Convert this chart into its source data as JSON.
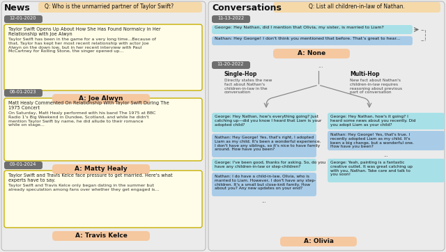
{
  "bg_color": "#ebebeb",
  "left_bg": "#ebebeb",
  "right_bg": "#ebebeb",
  "article_bg": "#fffde7",
  "article_border": "#c8b000",
  "date_bg": "#6e6e6e",
  "date_text": "#ffffff",
  "answer_bg": "#f5c8a0",
  "question_bg": "#f5d9a8",
  "george_bubble": "#a8e0e8",
  "nathan_bubble": "#a8cce8",
  "fork_color": "#888888",
  "title_color": "#000000",
  "border_color": "#bbbbbb",
  "left_panel": {
    "title": "News",
    "question": "Q: Who is the unmarried partner of Taylor Swift?",
    "articles": [
      {
        "date": "12-01-2020",
        "headline": "Taylor Swift Opens Up About How She Has Found Normalcy in Her\nRelationship with Joe Alwyn",
        "body": "Taylor Swift has been in the game for a very long time...Because of\nthat, Taylor has kept her most recent relationship with actor Joe\nAlwyn on the down low, but in her recent interview with Paul\nMcCartney for Rolling Stone, the singer opened up...",
        "bold_phrase": "Taylor has kept her most recent relationship with actor Joe\nAlwyn",
        "answer": "A: Joe Alwyn"
      },
      {
        "date": "06-01-2023",
        "headline": "Matt Healy Commented On Relationship With Taylor Swift During The\n1975 Concert",
        "body": "On Saturday, Matt Healy performed with his band The 1975 at BBC\nRadio 1's Big Weekend in Dundee, Scotland, and while he didn't\nmention Taylor Swift by name, he did allude to their romance\nwhile on stage...",
        "bold_phrase": "while he didn't\nmention Taylor Swift by name, he did allude to their romance\nwhile on stage...",
        "answer": "A: Matty Healy"
      },
      {
        "date": "03-01-2024",
        "headline": "Taylor Swift and Travis Kelce face pressure to get married. Here's what\nexperts have to say.",
        "body": "Taylor Swift and Travis Kelce only began dating in the summer but\nalready speculation among fans over whether they get engaged is...",
        "bold_phrase": "Taylor Swift and Travis Kelce only began dating in the summer",
        "answer": "A: Travis Kelce"
      }
    ]
  },
  "right_panel": {
    "title": "Conversations",
    "question": "Q: List all children-in-law of Nathan.",
    "conv1_date": "11-13-2022",
    "george1": "George: Hey Nathan, did I mention that Olivia, my sister, is married to Liam?",
    "george1_bold": "Olivia, my sister, is married to Liam",
    "nathan1": "Nathan: Hey George! I don't think you mentioned that before. That’s great to hear...",
    "answer1": "A: None",
    "conv2_date": "11-20-2022",
    "dots_top": "...",
    "single_hop_label": "Single-Hop",
    "single_hop_desc": "Directly states the new\nfact about Nathan's\nchildren-in-law in the\nconversation",
    "multi_hop_label": "Multi-Hop",
    "multi_hop_desc": "New fact about Nathan's\nchildren-in-law requires\nreasoning about previous\npart of conversation",
    "sg1": "George: Hey Nathan, how's everything going? Just\ncatching up—did you know I heard that Liam is your\nadopted child?",
    "sn1": "Nathan: Hey George! Yes, that's right, I adopted\nLiam as my child. It's been a wonderful experience.\nI don't have any siblings, so it's nice to have family\naround. How have you been?",
    "sg2": "George: I've been good, thanks for asking. So, do you\nhave any children-in-law or step-children?",
    "sn2": "Nathan: I do have a child-in-law, Olivia, who is\nmarried to Liam. However, I don't have any step-\nchildren. It's a small but close-knit family. How\nabout you? Any new updates on your end?",
    "dots_s": "...",
    "mg1": "George: Hey Nathan, how's it going? I\nheard some news about you recently. Did\nyou adopt Liam as your child?",
    "mn1": "Nathan: Hey George! Yes, that's true. I\nrecently adopted Liam as my child. It's\nbeen a big change, but a wonderful one.\nHow have you been?",
    "dots_m": "...",
    "mg2": "George: Yeah, painting is a fantastic\ncreative outlet. It was great catching up\nwith you, Nathan. Take care and talk to\nyou soon!",
    "answer2": "A: Olivia"
  }
}
